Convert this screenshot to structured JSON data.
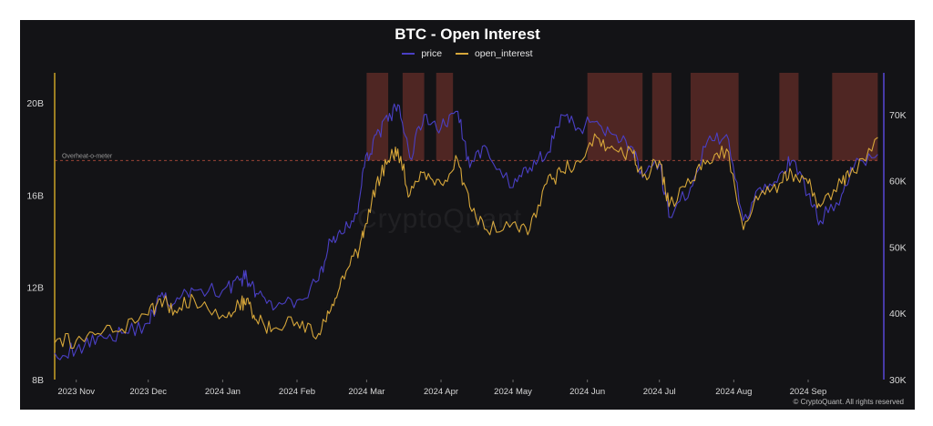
{
  "chart_data": {
    "type": "line",
    "title": "BTC - Open Interest",
    "watermark": "CryptoQuant",
    "copyright": "© CryptoQuant. All rights reserved",
    "threshold_label": "Overheat-o-meter",
    "threshold_value": 17.5,
    "colors": {
      "background": "#131316",
      "price": "#4a3fc4",
      "open_interest": "#d6a63a",
      "left_axis": "#c9a227",
      "right_axis": "#5747d6",
      "overheat_zone": "#5a2a26",
      "threshold_line": "#b04a3a"
    },
    "x_axis": {
      "tick_labels": [
        "2023 Nov",
        "2023 Dec",
        "2024 Jan",
        "2024 Feb",
        "2024 Mar",
        "2024 Apr",
        "2024 May",
        "2024 Jun",
        "2024 Jul",
        "2024 Aug",
        "2024 Sep"
      ],
      "range": [
        "2023-10-23",
        "2024-10-01"
      ]
    },
    "y_left": {
      "tick_labels": [
        "8B",
        "12B",
        "16B",
        "20B"
      ],
      "range": [
        8,
        21.5
      ],
      "unit": "B"
    },
    "y_right": {
      "tick_labels": [
        "30K",
        "40K",
        "50K",
        "60K",
        "70K"
      ],
      "range": [
        30,
        77
      ],
      "unit": "K"
    },
    "overheat_periods": [
      [
        "2024-03-01",
        "2024-03-10"
      ],
      [
        "2024-03-16",
        "2024-03-25"
      ],
      [
        "2024-03-30",
        "2024-04-06"
      ],
      [
        "2024-06-01",
        "2024-06-24"
      ],
      [
        "2024-06-28",
        "2024-07-06"
      ],
      [
        "2024-07-14",
        "2024-08-03"
      ],
      [
        "2024-08-20",
        "2024-08-28"
      ],
      [
        "2024-09-11",
        "2024-09-30"
      ]
    ],
    "series": [
      {
        "name": "price",
        "axis": "right",
        "x": [
          "2023-10-23",
          "2023-11-01",
          "2023-11-10",
          "2023-11-20",
          "2023-12-01",
          "2023-12-06",
          "2023-12-12",
          "2023-12-20",
          "2024-01-01",
          "2024-01-08",
          "2024-01-11",
          "2024-01-15",
          "2024-01-22",
          "2024-02-01",
          "2024-02-10",
          "2024-02-15",
          "2024-02-20",
          "2024-02-26",
          "2024-02-29",
          "2024-03-05",
          "2024-03-10",
          "2024-03-14",
          "2024-03-19",
          "2024-03-25",
          "2024-04-01",
          "2024-04-08",
          "2024-04-13",
          "2024-04-20",
          "2024-05-01",
          "2024-05-08",
          "2024-05-15",
          "2024-05-21",
          "2024-05-28",
          "2024-06-05",
          "2024-06-12",
          "2024-06-20",
          "2024-06-24",
          "2024-07-01",
          "2024-07-05",
          "2024-07-14",
          "2024-07-21",
          "2024-07-29",
          "2024-08-05",
          "2024-08-12",
          "2024-08-20",
          "2024-08-25",
          "2024-09-01",
          "2024-09-06",
          "2024-09-15",
          "2024-09-20",
          "2024-09-30"
        ],
        "y": [
          34,
          34.5,
          36.5,
          37,
          38.5,
          42.5,
          41.5,
          43.5,
          43.5,
          45,
          45.5,
          43,
          40.5,
          42,
          45,
          51,
          52,
          55,
          62,
          67,
          69,
          71.5,
          63.5,
          70,
          68,
          70.5,
          62,
          65,
          59,
          62,
          64,
          70,
          68,
          69,
          67,
          65,
          60.5,
          62.5,
          54.5,
          59,
          66,
          67,
          54,
          59,
          61,
          63,
          58,
          54,
          58,
          62,
          64
        ]
      },
      {
        "name": "open_interest",
        "axis": "left",
        "x": [
          "2023-10-23",
          "2023-11-01",
          "2023-11-10",
          "2023-11-20",
          "2023-12-01",
          "2023-12-06",
          "2023-12-12",
          "2023-12-20",
          "2024-01-01",
          "2024-01-08",
          "2024-01-11",
          "2024-01-15",
          "2024-01-22",
          "2024-02-01",
          "2024-02-10",
          "2024-02-15",
          "2024-02-20",
          "2024-02-26",
          "2024-02-29",
          "2024-03-05",
          "2024-03-10",
          "2024-03-14",
          "2024-03-19",
          "2024-03-25",
          "2024-04-01",
          "2024-04-08",
          "2024-04-13",
          "2024-04-20",
          "2024-05-01",
          "2024-05-08",
          "2024-05-15",
          "2024-05-21",
          "2024-05-28",
          "2024-06-05",
          "2024-06-12",
          "2024-06-20",
          "2024-06-24",
          "2024-07-01",
          "2024-07-05",
          "2024-07-14",
          "2024-07-21",
          "2024-07-29",
          "2024-08-05",
          "2024-08-12",
          "2024-08-20",
          "2024-08-25",
          "2024-09-01",
          "2024-09-06",
          "2024-09-15",
          "2024-09-20",
          "2024-09-30"
        ],
        "y": [
          9.6,
          9.7,
          10.0,
          10.2,
          10.8,
          11.5,
          11.0,
          11.5,
          10.8,
          11.2,
          11.5,
          10.6,
          10.2,
          10.5,
          10.0,
          11.0,
          12.5,
          13.5,
          14.5,
          16.5,
          17.5,
          18.0,
          16.0,
          17.0,
          16.5,
          17.5,
          15.5,
          14.5,
          14.8,
          14.5,
          16.5,
          17.0,
          17.5,
          18.5,
          18.0,
          17.8,
          16.8,
          17.5,
          15.5,
          16.5,
          17.5,
          18.0,
          14.5,
          16.0,
          16.5,
          17.0,
          16.5,
          15.5,
          16.5,
          17.0,
          18.5
        ]
      }
    ]
  }
}
